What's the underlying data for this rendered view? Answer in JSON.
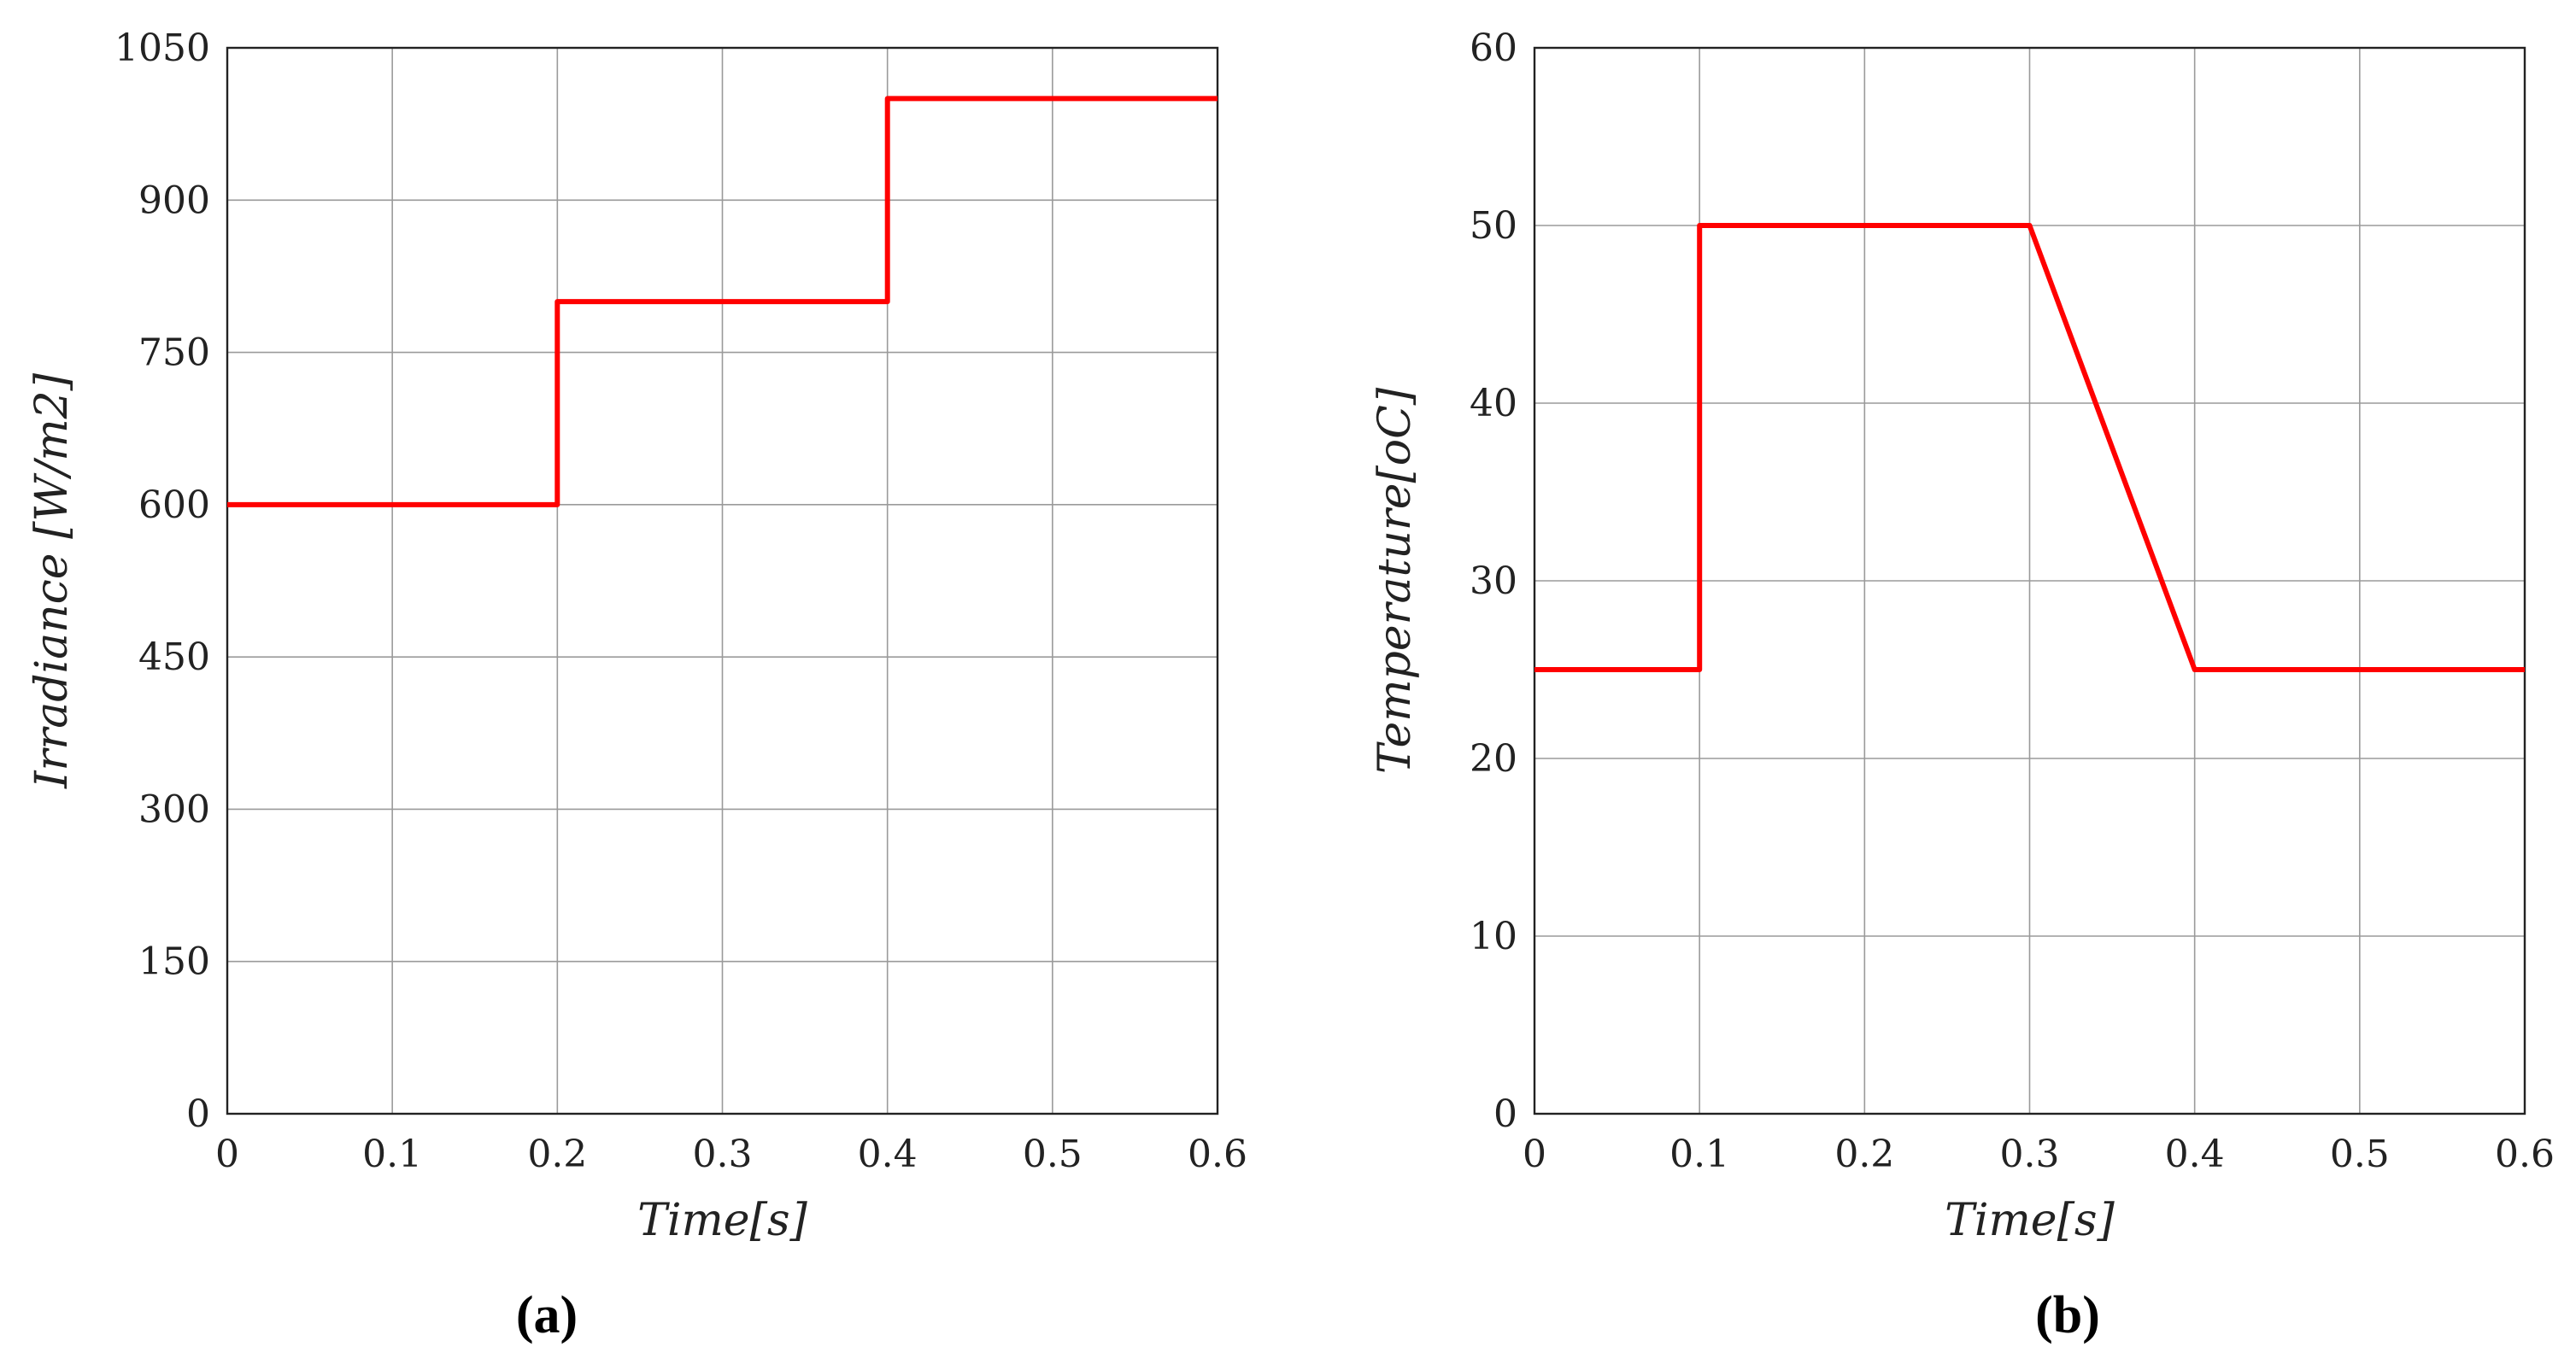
{
  "chart_data": [
    {
      "type": "line",
      "panel_label": "(a)",
      "xlabel": "Time[s]",
      "ylabel": "Irradiance [W/m2]",
      "xlim": [
        0,
        0.6
      ],
      "ylim": [
        0,
        1050
      ],
      "xticks": [
        0,
        0.1,
        0.2,
        0.3,
        0.4,
        0.5,
        0.6
      ],
      "xtick_labels": [
        "0",
        "0.1",
        "0.2",
        "0.3",
        "0.4",
        "0.5",
        "0.6"
      ],
      "yticks": [
        0,
        150,
        300,
        450,
        600,
        750,
        900,
        1050
      ],
      "ytick_labels": [
        "0",
        "150",
        "300",
        "450",
        "600",
        "750",
        "900",
        "1050"
      ],
      "grid": true,
      "series": [
        {
          "color": "#ff0000",
          "x": [
            0,
            0.2,
            0.2,
            0.4,
            0.4,
            0.6
          ],
          "y": [
            600,
            600,
            800,
            800,
            1000,
            1000
          ]
        }
      ]
    },
    {
      "type": "line",
      "panel_label": "(b)",
      "xlabel": "Time[s]",
      "ylabel": "Temperature[oC]",
      "xlim": [
        0,
        0.6
      ],
      "ylim": [
        0,
        60
      ],
      "xticks": [
        0,
        0.1,
        0.2,
        0.3,
        0.4,
        0.5,
        0.6
      ],
      "xtick_labels": [
        "0",
        "0.1",
        "0.2",
        "0.3",
        "0.4",
        "0.5",
        "0.6"
      ],
      "yticks": [
        0,
        10,
        20,
        30,
        40,
        50,
        60
      ],
      "ytick_labels": [
        "0",
        "10",
        "20",
        "30",
        "40",
        "50",
        "60"
      ],
      "grid": true,
      "series": [
        {
          "color": "#ff0000",
          "x": [
            0,
            0.1,
            0.1,
            0.3,
            0.4,
            0.6
          ],
          "y": [
            25,
            25,
            50,
            50,
            25,
            25
          ]
        }
      ]
    }
  ]
}
